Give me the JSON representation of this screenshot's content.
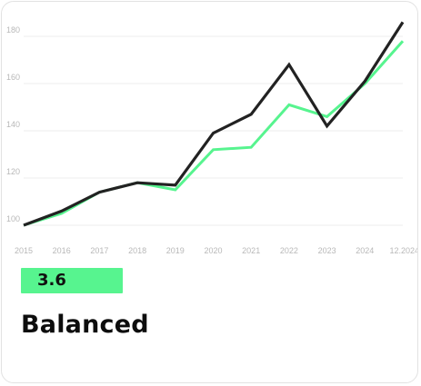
{
  "chart_data": {
    "type": "line",
    "x": [
      "2015",
      "2016",
      "2017",
      "2018",
      "2019",
      "2020",
      "2021",
      "2022",
      "2023",
      "2024",
      "12.2024"
    ],
    "series": [
      {
        "values": [
          100,
          105,
          114,
          118,
          115,
          132,
          133,
          151,
          146,
          160,
          178
        ],
        "color": "#57f48f"
      },
      {
        "values": [
          100,
          106,
          114,
          118,
          117,
          139,
          147,
          168,
          142,
          161,
          186
        ],
        "color": "#222222"
      }
    ],
    "yticks": [
      100,
      120,
      140,
      160,
      180
    ],
    "ylim": [
      100,
      186
    ],
    "grid": "horizontal",
    "title": "",
    "xlabel": "",
    "ylabel": ""
  },
  "summary": {
    "value": "3.6",
    "label": "Balanced",
    "badge_color": "#57f48f"
  }
}
